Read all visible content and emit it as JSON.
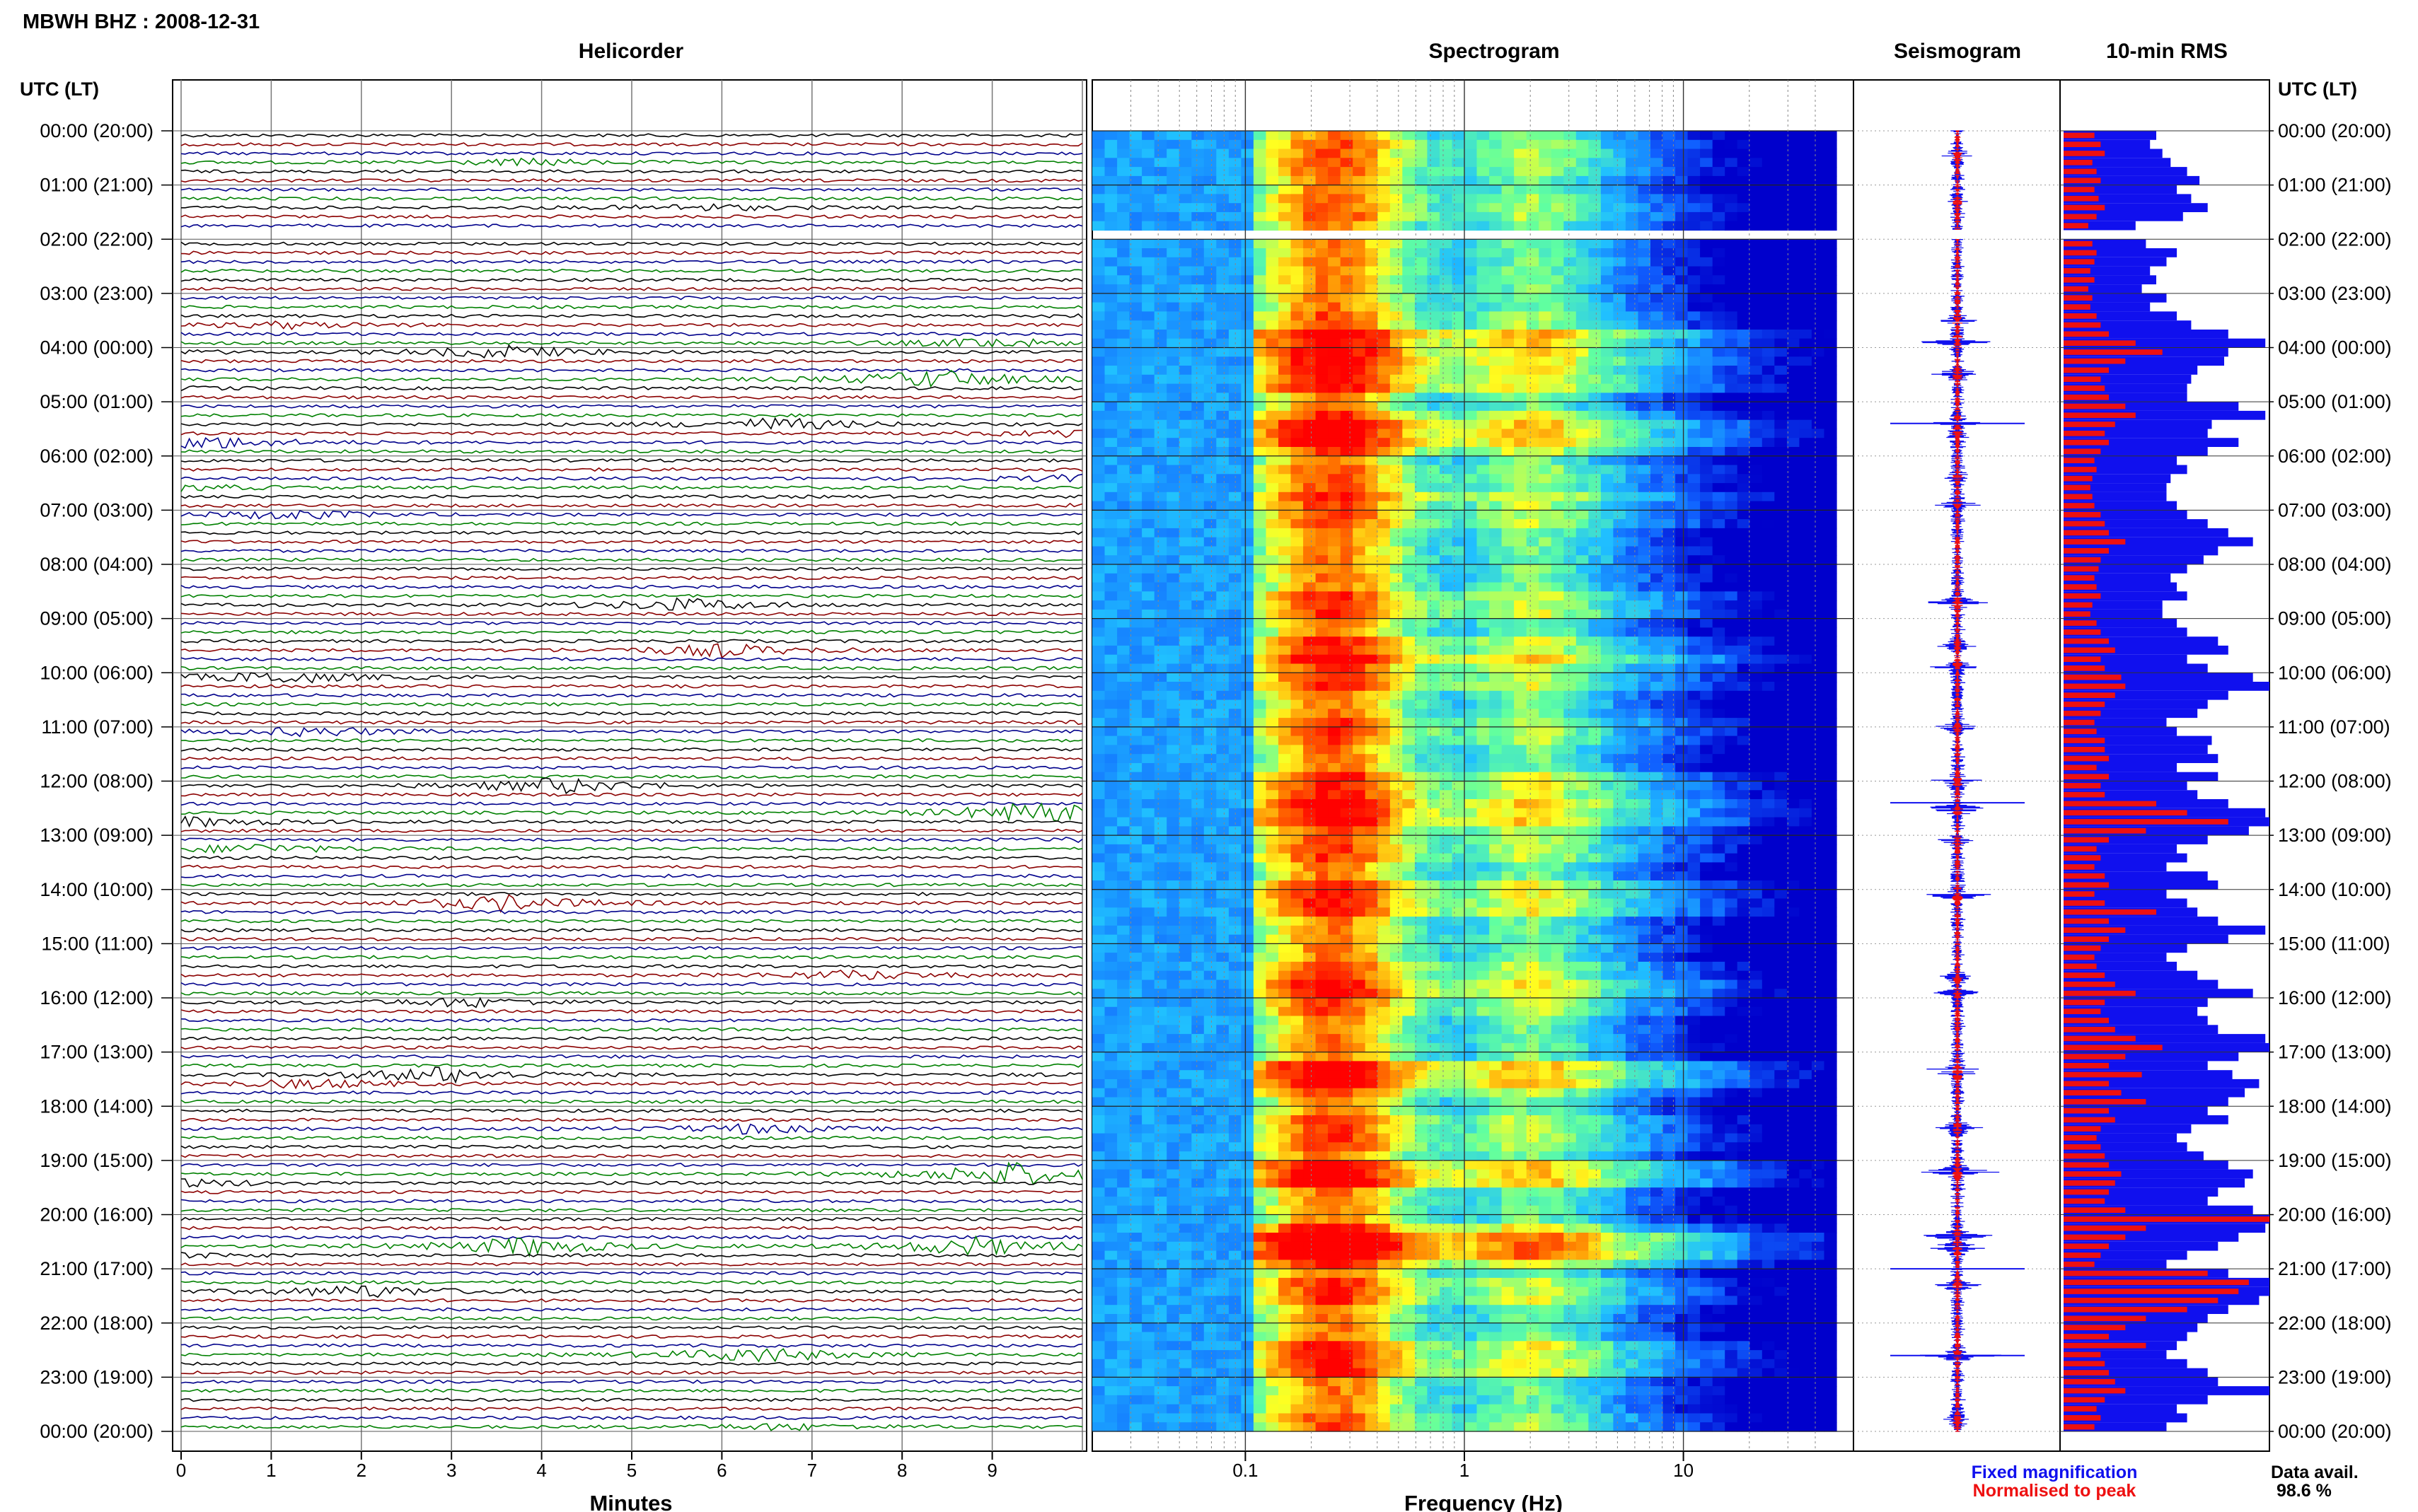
{
  "station_title": "MBWH BHZ : 2008-12-31",
  "panel_titles": {
    "helicorder": "Helicorder",
    "spectrogram": "Spectrogram",
    "seismogram": "Seismogram",
    "rms": "10-min RMS"
  },
  "time_axis_title": "UTC (LT)",
  "time_labels": [
    "00:00 (20:00)",
    "01:00 (21:00)",
    "02:00 (22:00)",
    "03:00 (23:00)",
    "04:00 (00:00)",
    "05:00 (01:00)",
    "06:00 (02:00)",
    "07:00 (03:00)",
    "08:00 (04:00)",
    "09:00 (05:00)",
    "10:00 (06:00)",
    "11:00 (07:00)",
    "12:00 (08:00)",
    "13:00 (09:00)",
    "14:00 (10:00)",
    "15:00 (11:00)",
    "16:00 (12:00)",
    "17:00 (13:00)",
    "18:00 (14:00)",
    "19:00 (15:00)",
    "20:00 (16:00)",
    "21:00 (17:00)",
    "22:00 (18:00)",
    "23:00 (19:00)",
    "00:00 (20:00)"
  ],
  "minutes_label": "Minutes",
  "minute_ticks": [
    "0",
    "1",
    "2",
    "3",
    "4",
    "5",
    "6",
    "7",
    "8",
    "9"
  ],
  "frequency_label": "Frequency (Hz)",
  "frequency_ticks": [
    "0.1",
    "1",
    "10"
  ],
  "legend": {
    "fixed": "Fixed magnification",
    "normalised": "Normalised to peak",
    "fixed_color": "#1010ee",
    "normalised_color": "#ee1010"
  },
  "availability": {
    "label": "Data avail.",
    "value": "98.6 %"
  },
  "chart_data": {
    "type": "heatmap",
    "helicorder": {
      "trace_colors": [
        "#000000",
        "#8b0000",
        "#00008b",
        "#008000"
      ],
      "trace_interval_minutes": 10,
      "xlim_minutes": [
        0,
        10
      ],
      "data_gap_utc": [
        "01:50",
        "02:00"
      ],
      "events": [
        {
          "hour": 0.45,
          "minute": 6.9,
          "amp": 2
        },
        {
          "hour": 1.3,
          "minute": 7.8,
          "amp": 2
        },
        {
          "hour": 3.5,
          "minute": 1.2,
          "amp": 2
        },
        {
          "hour": 3.9,
          "minute": 5.0,
          "amp": 3
        },
        {
          "hour": 3.9,
          "minute": 9.6,
          "amp": 4
        },
        {
          "hour": 4.5,
          "minute": 8.4,
          "amp": 6
        },
        {
          "hour": 5.4,
          "minute": 2.6,
          "amp": 4
        },
        {
          "hour": 5.6,
          "minute": 4.3,
          "amp": 4
        },
        {
          "hour": 6.4,
          "minute": 5.9,
          "amp": 2
        },
        {
          "hour": 6.9,
          "minute": 7.2,
          "amp": 3
        },
        {
          "hour": 8.7,
          "minute": 3.6,
          "amp": 4
        },
        {
          "hour": 9.5,
          "minute": 6.0,
          "amp": 4
        },
        {
          "hour": 9.9,
          "minute": 7.1,
          "amp": 4
        },
        {
          "hour": 11.0,
          "minute": 1.5,
          "amp": 3
        },
        {
          "hour": 12.0,
          "minute": 4.2,
          "amp": 5
        },
        {
          "hour": 12.5,
          "minute": 9.5,
          "amp": 7
        },
        {
          "hour": 13.1,
          "minute": 4.8,
          "amp": 3
        },
        {
          "hour": 14.1,
          "minute": 7.6,
          "amp": 5
        },
        {
          "hour": 15.6,
          "minute": 1.5,
          "amp": 3
        },
        {
          "hour": 15.9,
          "minute": 9.2,
          "amp": 3
        },
        {
          "hour": 17.3,
          "minute": 4.9,
          "amp": 5
        },
        {
          "hour": 17.4,
          "minute": 7.5,
          "amp": 3
        },
        {
          "hour": 18.4,
          "minute": 2.3,
          "amp": 3
        },
        {
          "hour": 19.2,
          "minute": 7.2,
          "amp": 8
        },
        {
          "hour": 20.4,
          "minute": 9.8,
          "amp": 6
        },
        {
          "hour": 20.6,
          "minute": 2.8,
          "amp": 6
        },
        {
          "hour": 21.3,
          "minute": 4.0,
          "amp": 4
        },
        {
          "hour": 22.6,
          "minute": 0.4,
          "amp": 5
        },
        {
          "hour": 23.8,
          "minute": 8.7,
          "amp": 2
        }
      ]
    },
    "spectrogram": {
      "x_scale": "log",
      "xlim_hz": [
        0.02,
        50
      ],
      "colormap": [
        "#0000cc",
        "#1060ff",
        "#20c0ff",
        "#60ffa0",
        "#ffff20",
        "#ff8000",
        "#ff0000"
      ],
      "dominant_band_hz": [
        0.15,
        0.35
      ],
      "secondary_band_hz": [
        1.5,
        3.0
      ],
      "data_gap_utc": [
        "01:50",
        "02:00"
      ]
    },
    "rms_10min": {
      "xlim_relative": [
        0,
        1
      ],
      "fixed_magnification": [
        0.45,
        0.42,
        0.48,
        0.52,
        0.6,
        0.66,
        0.55,
        0.62,
        0.7,
        0.58,
        0.35,
        0.0,
        0.4,
        0.55,
        0.5,
        0.42,
        0.45,
        0.38,
        0.5,
        0.42,
        0.55,
        0.62,
        0.8,
        0.98,
        0.8,
        0.78,
        0.65,
        0.62,
        0.6,
        0.6,
        0.85,
        0.98,
        0.72,
        0.7,
        0.85,
        0.7,
        0.55,
        0.6,
        0.52,
        0.5,
        0.5,
        0.55,
        0.6,
        0.7,
        0.8,
        0.92,
        0.75,
        0.68,
        0.6,
        0.52,
        0.55,
        0.6,
        0.48,
        0.48,
        0.55,
        0.6,
        0.75,
        0.8,
        0.6,
        0.7,
        0.92,
        1.0,
        0.8,
        0.7,
        0.65,
        0.5,
        0.55,
        0.72,
        0.7,
        0.75,
        0.55,
        0.75,
        0.6,
        0.65,
        0.8,
        0.98,
        1.0,
        0.9,
        0.7,
        0.55,
        0.6,
        0.5,
        0.7,
        0.75,
        0.5,
        0.6,
        0.65,
        0.75,
        0.98,
        0.8,
        0.6,
        0.5,
        0.55,
        0.65,
        0.75,
        0.92,
        0.7,
        0.65,
        0.7,
        0.75,
        0.98,
        1.0,
        0.85,
        0.7,
        0.82,
        0.95,
        0.88,
        0.8,
        0.7,
        0.8,
        0.62,
        0.55,
        0.6,
        0.68,
        0.8,
        0.92,
        0.88,
        0.75,
        0.7,
        0.92,
        1.0,
        0.98,
        0.85,
        0.75,
        0.6,
        0.5,
        0.8,
        1.0,
        1.0,
        0.95,
        0.8,
        0.7,
        0.65,
        0.6,
        0.55,
        0.5,
        0.6,
        0.7,
        0.75,
        1.0,
        0.7,
        0.55,
        0.6,
        0.5
      ],
      "normalised_to_peak": [
        0.15,
        0.18,
        0.2,
        0.14,
        0.16,
        0.18,
        0.15,
        0.17,
        0.2,
        0.16,
        0.12,
        0.0,
        0.14,
        0.16,
        0.15,
        0.13,
        0.15,
        0.12,
        0.14,
        0.13,
        0.16,
        0.18,
        0.22,
        0.35,
        0.48,
        0.3,
        0.22,
        0.18,
        0.2,
        0.22,
        0.3,
        0.35,
        0.25,
        0.2,
        0.22,
        0.18,
        0.15,
        0.16,
        0.14,
        0.13,
        0.14,
        0.15,
        0.18,
        0.2,
        0.22,
        0.3,
        0.22,
        0.18,
        0.17,
        0.15,
        0.16,
        0.18,
        0.14,
        0.13,
        0.16,
        0.18,
        0.22,
        0.25,
        0.18,
        0.2,
        0.28,
        0.3,
        0.25,
        0.2,
        0.18,
        0.15,
        0.16,
        0.2,
        0.2,
        0.22,
        0.16,
        0.22,
        0.18,
        0.2,
        0.45,
        0.6,
        0.8,
        0.4,
        0.22,
        0.16,
        0.18,
        0.15,
        0.2,
        0.22,
        0.15,
        0.2,
        0.45,
        0.22,
        0.3,
        0.22,
        0.18,
        0.15,
        0.16,
        0.2,
        0.25,
        0.35,
        0.2,
        0.18,
        0.22,
        0.25,
        0.35,
        0.48,
        0.3,
        0.22,
        0.38,
        0.22,
        0.28,
        0.4,
        0.22,
        0.25,
        0.18,
        0.16,
        0.18,
        0.2,
        0.22,
        0.28,
        0.25,
        0.22,
        0.2,
        0.3,
        1.0,
        0.4,
        0.3,
        0.22,
        0.18,
        0.15,
        0.7,
        0.9,
        0.85,
        0.75,
        0.6,
        0.4,
        0.3,
        0.22,
        0.4,
        0.18,
        0.2,
        0.22,
        0.25,
        0.3,
        0.2,
        0.16,
        0.18,
        0.15
      ]
    }
  }
}
